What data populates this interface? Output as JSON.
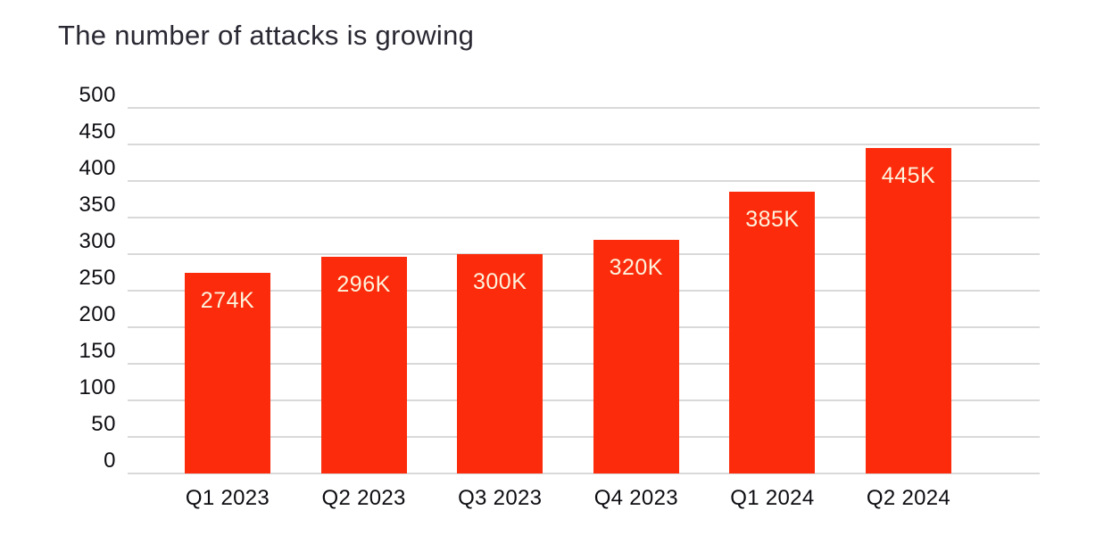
{
  "page": {
    "title": "The number of attacks is growing"
  },
  "chart_data": {
    "type": "bar",
    "title": "The number of attacks is growing",
    "categories": [
      "Q1 2023",
      "Q2 2023",
      "Q3 2023",
      "Q4 2023",
      "Q1 2024",
      "Q2 2024"
    ],
    "values": [
      274,
      296,
      300,
      320,
      385,
      445
    ],
    "bar_labels": [
      "274K",
      "296K",
      "300K",
      "320K",
      "385K",
      "445K"
    ],
    "unit": "K",
    "xlabel": "",
    "ylabel": "",
    "ylim": [
      0,
      500
    ],
    "yticks": [
      0,
      50,
      100,
      150,
      200,
      250,
      300,
      350,
      400,
      450,
      500
    ],
    "grid": true,
    "legend": false,
    "colors": {
      "bar": "#fb2b0c",
      "bar_label": "#fdf3dc",
      "title": "#2a2933",
      "axis_labels": "#0d0d12",
      "gridline": "#d9d9d9",
      "background": "#ffffff"
    }
  }
}
